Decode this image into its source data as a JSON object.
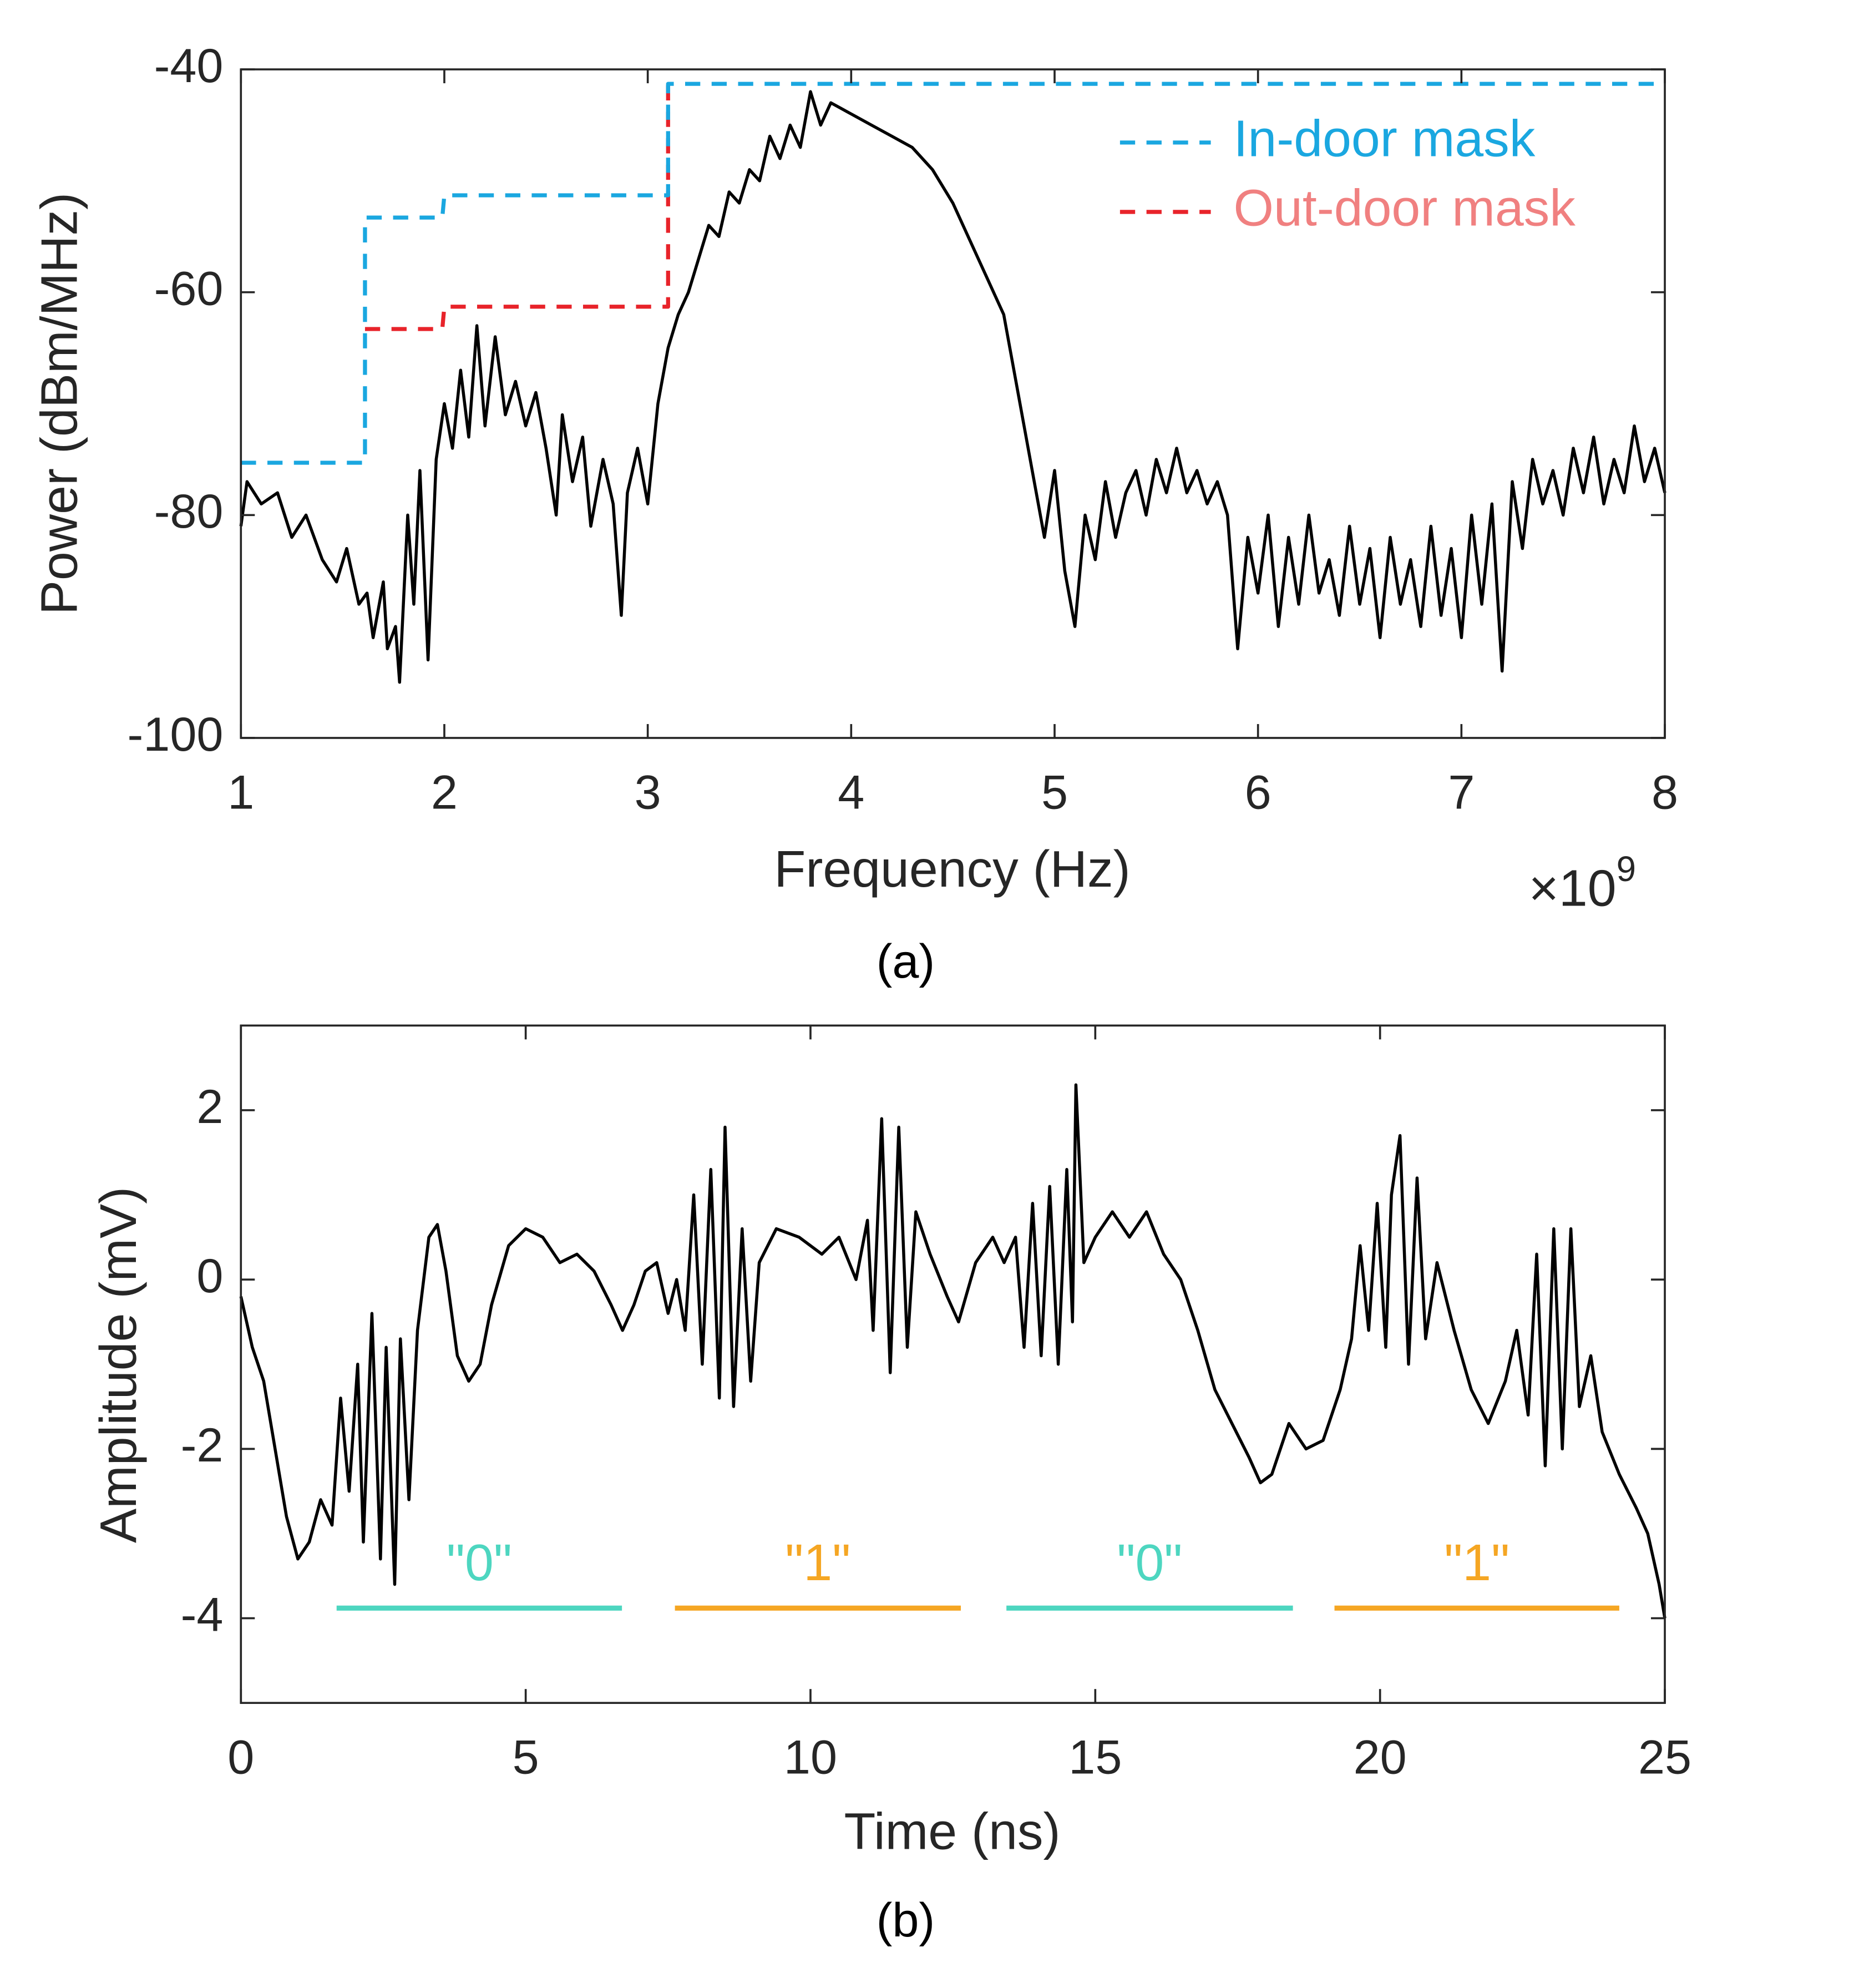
{
  "chart_data": [
    {
      "type": "line",
      "x_label": "Frequency (Hz)",
      "y_label": "Power (dBm/MHz)",
      "caption": "(a)",
      "x_multiplier": {
        "base": "×10",
        "exponent": "9"
      },
      "xlim": [
        1000000000.0,
        8000000000.0
      ],
      "ylim": [
        -100,
        -40
      ],
      "xticks": [
        {
          "value": 1000000000.0,
          "label": "1"
        },
        {
          "value": 2000000000.0,
          "label": "2"
        },
        {
          "value": 3000000000.0,
          "label": "3"
        },
        {
          "value": 4000000000.0,
          "label": "4"
        },
        {
          "value": 5000000000.0,
          "label": "5"
        },
        {
          "value": 6000000000.0,
          "label": "6"
        },
        {
          "value": 7000000000.0,
          "label": "7"
        },
        {
          "value": 8000000000.0,
          "label": "8"
        }
      ],
      "yticks": [
        -100,
        -80,
        -60,
        -40
      ],
      "legend": "upper right",
      "series": [
        {
          "color": "#000000",
          "line_style": "solid",
          "x": [
            1000000000.0,
            1030000000.0,
            1100000000.0,
            1180000000.0,
            1250000000.0,
            1320000000.0,
            1400000000.0,
            1470000000.0,
            1520000000.0,
            1580000000.0,
            1620000000.0,
            1650000000.0,
            1700000000.0,
            1720000000.0,
            1760000000.0,
            1780000000.0,
            1820000000.0,
            1850000000.0,
            1880000000.0,
            1920000000.0,
            1960000000.0,
            2000000000.0,
            2040000000.0,
            2080000000.0,
            2120000000.0,
            2160000000.0,
            2200000000.0,
            2250000000.0,
            2300000000.0,
            2350000000.0,
            2400000000.0,
            2450000000.0,
            2500000000.0,
            2550000000.0,
            2580000000.0,
            2630000000.0,
            2680000000.0,
            2720000000.0,
            2780000000.0,
            2830000000.0,
            2870000000.0,
            2900000000.0,
            2950000000.0,
            3000000000.0,
            3050000000.0,
            3100000000.0,
            3150000000.0,
            3200000000.0,
            3250000000.0,
            3300000000.0,
            3350000000.0,
            3400000000.0,
            3450000000.0,
            3500000000.0,
            3550000000.0,
            3600000000.0,
            3650000000.0,
            3700000000.0,
            3750000000.0,
            3800000000.0,
            3850000000.0,
            3900000000.0,
            4000000000.0,
            4100000000.0,
            4200000000.0,
            4300000000.0,
            4400000000.0,
            4500000000.0,
            4600000000.0,
            4700000000.0,
            4750000000.0,
            4800000000.0,
            4850000000.0,
            4900000000.0,
            4950000000.0,
            5000000000.0,
            5050000000.0,
            5100000000.0,
            5150000000.0,
            5200000000.0,
            5250000000.0,
            5300000000.0,
            5350000000.0,
            5400000000.0,
            5450000000.0,
            5500000000.0,
            5550000000.0,
            5600000000.0,
            5650000000.0,
            5700000000.0,
            5750000000.0,
            5800000000.0,
            5850000000.0,
            5900000000.0,
            5950000000.0,
            6000000000.0,
            6050000000.0,
            6100000000.0,
            6150000000.0,
            6200000000.0,
            6250000000.0,
            6300000000.0,
            6350000000.0,
            6400000000.0,
            6450000000.0,
            6500000000.0,
            6550000000.0,
            6600000000.0,
            6650000000.0,
            6700000000.0,
            6750000000.0,
            6800000000.0,
            6850000000.0,
            6900000000.0,
            6950000000.0,
            7000000000.0,
            7050000000.0,
            7100000000.0,
            7150000000.0,
            7200000000.0,
            7250000000.0,
            7300000000.0,
            7350000000.0,
            7400000000.0,
            7450000000.0,
            7500000000.0,
            7550000000.0,
            7600000000.0,
            7650000000.0,
            7700000000.0,
            7750000000.0,
            7800000000.0,
            7850000000.0,
            7900000000.0,
            7950000000.0,
            8000000000.0
          ],
          "values": [
            -81,
            -77,
            -79,
            -78,
            -82,
            -80,
            -84,
            -86,
            -83,
            -88,
            -87,
            -91,
            -86,
            -92,
            -90,
            -95,
            -80,
            -88,
            -76,
            -93,
            -75,
            -70,
            -74,
            -67,
            -73,
            -63,
            -72,
            -64,
            -71,
            -68,
            -72,
            -69,
            -74,
            -80,
            -71,
            -77,
            -73,
            -81,
            -75,
            -79,
            -89,
            -78,
            -74,
            -79,
            -70,
            -65,
            -62,
            -60,
            -57,
            -54,
            -55,
            -51,
            -52,
            -49,
            -50,
            -46,
            -48,
            -45,
            -47,
            -42,
            -45,
            -43,
            -44,
            -45,
            -46,
            -47,
            -49,
            -52,
            -56,
            -60,
            -62,
            -67,
            -72,
            -77,
            -82,
            -76,
            -85,
            -90,
            -80,
            -84,
            -77,
            -82,
            -78,
            -76,
            -80,
            -75,
            -78,
            -74,
            -78,
            -76,
            -79,
            -77,
            -80,
            -92,
            -82,
            -87,
            -80,
            -90,
            -82,
            -88,
            -80,
            -87,
            -84,
            -89,
            -81,
            -88,
            -83,
            -91,
            -82,
            -88,
            -84,
            -90,
            -81,
            -89,
            -83,
            -91,
            -80,
            -88,
            -79,
            -94,
            -77,
            -83,
            -75,
            -79,
            -76,
            -80,
            -74,
            -78,
            -73,
            -79,
            -75,
            -78,
            -72,
            -77,
            -74,
            -78
          ]
        },
        {
          "name": "Out-door mask",
          "color": "#e8232a",
          "label_color": "#f08080",
          "line_style": "dashed",
          "x": [
            1610000000.0,
            1990000000.0,
            2000000000.0,
            3100000000.0,
            3100000000.0
          ],
          "values": [
            -63.3,
            -63.3,
            -61.3,
            -61.3,
            -41.3
          ]
        },
        {
          "name": "In-door mask",
          "color": "#1aa7e0",
          "label_color": "#1aa7e0",
          "line_style": "dashed",
          "x": [
            1000000000.0,
            1610000000.0,
            1610000000.0,
            1990000000.0,
            2000000000.0,
            3100000000.0,
            3100000000.0,
            8000000000.0
          ],
          "values": [
            -75.3,
            -75.3,
            -53.3,
            -53.3,
            -51.3,
            -51.3,
            -41.3,
            -41.3
          ]
        }
      ]
    },
    {
      "type": "line",
      "x_label": "Time (ns)",
      "y_label": "Amplitude (mV)",
      "caption": "(b)",
      "xlim": [
        0,
        25
      ],
      "ylim": [
        -5,
        3
      ],
      "xticks": [
        0,
        5,
        10,
        15,
        20,
        25
      ],
      "yticks": [
        -4,
        -2,
        0,
        2
      ],
      "series": [
        {
          "color": "#000000",
          "line_style": "solid",
          "x": [
            0,
            0.2,
            0.4,
            0.6,
            0.8,
            1.0,
            1.2,
            1.4,
            1.6,
            1.75,
            1.9,
            2.05,
            2.15,
            2.3,
            2.45,
            2.55,
            2.7,
            2.8,
            2.95,
            3.1,
            3.3,
            3.45,
            3.6,
            3.8,
            4.0,
            4.2,
            4.4,
            4.7,
            5.0,
            5.3,
            5.6,
            5.9,
            6.2,
            6.5,
            6.7,
            6.9,
            7.1,
            7.3,
            7.5,
            7.65,
            7.8,
            7.95,
            8.1,
            8.25,
            8.4,
            8.5,
            8.65,
            8.8,
            8.95,
            9.1,
            9.4,
            9.8,
            10.2,
            10.5,
            10.8,
            11.0,
            11.1,
            11.25,
            11.4,
            11.55,
            11.7,
            11.85,
            12.1,
            12.4,
            12.6,
            12.9,
            13.2,
            13.4,
            13.6,
            13.75,
            13.9,
            14.05,
            14.2,
            14.35,
            14.5,
            14.6,
            14.66,
            14.8,
            15.0,
            15.3,
            15.6,
            15.9,
            16.2,
            16.5,
            16.8,
            17.1,
            17.4,
            17.7,
            17.9,
            18.1,
            18.4,
            18.7,
            19.0,
            19.3,
            19.5,
            19.65,
            19.8,
            19.95,
            20.1,
            20.2,
            20.35,
            20.5,
            20.65,
            20.8,
            21.0,
            21.3,
            21.6,
            21.9,
            22.2,
            22.4,
            22.6,
            22.75,
            22.9,
            23.05,
            23.2,
            23.35,
            23.5,
            23.7,
            23.9,
            24.2,
            24.5,
            24.7,
            24.9,
            25.0
          ],
          "values": [
            -0.2,
            -0.8,
            -1.2,
            -2.0,
            -2.8,
            -3.3,
            -3.1,
            -2.6,
            -2.9,
            -1.4,
            -2.5,
            -1.0,
            -3.1,
            -0.4,
            -3.3,
            -0.8,
            -3.6,
            -0.7,
            -2.6,
            -0.6,
            0.5,
            0.65,
            0.1,
            -0.9,
            -1.2,
            -1.0,
            -0.3,
            0.4,
            0.6,
            0.5,
            0.2,
            0.3,
            0.1,
            -0.3,
            -0.6,
            -0.3,
            0.1,
            0.2,
            -0.4,
            0.0,
            -0.6,
            1.0,
            -1.0,
            1.3,
            -1.4,
            1.8,
            -1.5,
            0.6,
            -1.2,
            0.2,
            0.6,
            0.5,
            0.3,
            0.5,
            0.0,
            0.7,
            -0.6,
            1.9,
            -1.1,
            1.8,
            -0.8,
            0.8,
            0.3,
            -0.2,
            -0.5,
            0.2,
            0.5,
            0.2,
            0.5,
            -0.8,
            0.9,
            -0.9,
            1.1,
            -1.0,
            1.3,
            -0.5,
            2.3,
            0.2,
            0.5,
            0.8,
            0.5,
            0.8,
            0.3,
            0.0,
            -0.6,
            -1.3,
            -1.7,
            -2.1,
            -2.4,
            -2.3,
            -1.7,
            -2.0,
            -1.9,
            -1.3,
            -0.7,
            0.4,
            -0.6,
            0.9,
            -0.8,
            1.0,
            1.7,
            -1.0,
            1.2,
            -0.7,
            0.2,
            -0.6,
            -1.3,
            -1.7,
            -1.2,
            -0.6,
            -1.6,
            0.3,
            -2.2,
            0.6,
            -2.0,
            0.6,
            -1.5,
            -0.9,
            -1.8,
            -2.3,
            -2.7,
            -3.0,
            -3.6,
            -4.0
          ]
        }
      ],
      "annotations": [
        {
          "text": "\"0\"",
          "color": "#4dd6c0",
          "x": [
            1.68,
            6.69
          ],
          "y": -3.88
        },
        {
          "text": "\"1\"",
          "color": "#f5a623",
          "x": [
            7.62,
            12.64
          ],
          "y": -3.88
        },
        {
          "text": "\"0\"",
          "color": "#4dd6c0",
          "x": [
            13.44,
            18.47
          ],
          "y": -3.88
        },
        {
          "text": "\"1\"",
          "color": "#f5a623",
          "x": [
            19.2,
            24.2
          ],
          "y": -3.88
        }
      ]
    }
  ]
}
